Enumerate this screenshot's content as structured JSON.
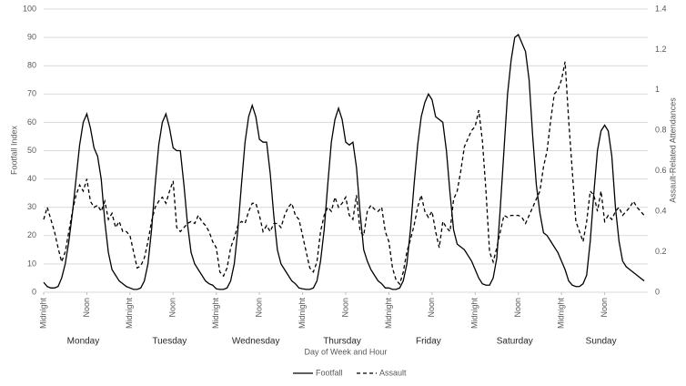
{
  "chart_data": {
    "type": "line",
    "xlabel": "Day of Week and Hour",
    "ylabel": "Footfall Index",
    "y2label": "Assault-Related Attendances",
    "day_labels": [
      "Monday",
      "Tuesday",
      "Wednesday",
      "Thursday",
      "Friday",
      "Saturday",
      "Sunday"
    ],
    "x": [
      0,
      1,
      2,
      3,
      4,
      5,
      6,
      7,
      8,
      9,
      10,
      11,
      12,
      13,
      14,
      15,
      16,
      17,
      18,
      19,
      20,
      21,
      22,
      23,
      24,
      25,
      26,
      27,
      28,
      29,
      30,
      31,
      32,
      33,
      34,
      35,
      36,
      37,
      38,
      39,
      40,
      41,
      42,
      43,
      44,
      45,
      46,
      47,
      48,
      49,
      50,
      51,
      52,
      53,
      54,
      55,
      56,
      57,
      58,
      59,
      60,
      61,
      62,
      63,
      64,
      65,
      66,
      67,
      68,
      69,
      70,
      71,
      72,
      73,
      74,
      75,
      76,
      77,
      78,
      79,
      80,
      81,
      82,
      83,
      84,
      85,
      86,
      87,
      88,
      89,
      90,
      91,
      92,
      93,
      94,
      95,
      96,
      97,
      98,
      99,
      100,
      101,
      102,
      103,
      104,
      105,
      106,
      107,
      108,
      109,
      110,
      111,
      112,
      113,
      114,
      115,
      116,
      117,
      118,
      119,
      120,
      121,
      122,
      123,
      124,
      125,
      126,
      127,
      128,
      129,
      130,
      131,
      132,
      133,
      134,
      135,
      136,
      137,
      138,
      139,
      140,
      141,
      142,
      143,
      144,
      145,
      146,
      147,
      148,
      149,
      150,
      151,
      152,
      153,
      154,
      155,
      156,
      157,
      158,
      159,
      160,
      161,
      162,
      163,
      164,
      165,
      166,
      167
    ],
    "xlim": [
      0,
      168
    ],
    "xticks": [
      {
        "value": 0,
        "label": "Midnight"
      },
      {
        "value": 12,
        "label": "Noon"
      },
      {
        "value": 24,
        "label": "Midnight"
      },
      {
        "value": 36,
        "label": "Noon"
      },
      {
        "value": 48,
        "label": "Midnight"
      },
      {
        "value": 60,
        "label": "Noon"
      },
      {
        "value": 72,
        "label": "Midnight"
      },
      {
        "value": 84,
        "label": "Noon"
      },
      {
        "value": 96,
        "label": "Midnight"
      },
      {
        "value": 108,
        "label": "Noon"
      },
      {
        "value": 120,
        "label": "Midnight"
      },
      {
        "value": 132,
        "label": "Noon"
      },
      {
        "value": 144,
        "label": "Midnight"
      },
      {
        "value": 156,
        "label": "Noon"
      }
    ],
    "ylim": [
      0,
      100
    ],
    "yticks": [
      0,
      10,
      20,
      30,
      40,
      50,
      60,
      70,
      80,
      90,
      100
    ],
    "y2lim": [
      0,
      1.4
    ],
    "y2ticks": [
      0,
      0.2,
      0.4,
      0.6,
      0.8,
      1,
      1.2,
      1.4
    ],
    "grid": true,
    "legend": "bottom",
    "series": [
      {
        "name": "Footfall",
        "color": "#000000",
        "line_style": "solid",
        "axis": "y",
        "values": [
          3.5,
          2,
          1.5,
          1.5,
          2,
          5,
          10,
          18,
          28,
          40,
          52,
          60,
          63,
          58,
          51,
          48,
          40,
          25,
          14,
          8,
          6,
          4,
          3,
          2,
          1.5,
          1,
          1,
          1.5,
          4,
          10,
          22,
          38,
          52,
          60,
          63,
          58,
          51,
          50,
          50,
          38,
          24,
          14,
          10,
          8,
          6,
          4,
          3,
          2.5,
          1.2,
          1,
          1,
          1.5,
          4,
          10,
          22,
          38,
          53,
          62,
          66,
          62,
          54,
          53,
          53,
          42,
          27,
          15,
          10,
          8,
          6,
          4,
          3,
          1.5,
          1.2,
          1,
          1,
          1.5,
          4,
          11,
          22,
          38,
          53,
          61,
          65,
          61,
          53,
          52,
          53,
          44,
          28,
          15,
          11,
          8,
          6,
          4,
          3,
          1.5,
          1.5,
          1,
          1,
          1.5,
          4,
          10,
          22,
          38,
          52,
          62,
          67,
          70,
          68,
          62,
          61,
          60,
          50,
          35,
          22,
          17,
          16,
          15,
          13,
          11,
          8,
          5,
          3,
          2.5,
          2.5,
          5,
          12,
          30,
          50,
          70,
          82,
          90,
          91,
          88,
          85,
          75,
          55,
          38,
          28,
          21,
          20,
          18,
          16,
          14,
          11,
          8,
          4,
          2.5,
          2,
          2,
          3,
          6,
          18,
          35,
          50,
          57,
          59,
          57,
          48,
          30,
          18,
          11,
          9,
          8,
          7,
          6,
          5,
          4
        ]
      },
      {
        "name": "Assault",
        "color": "#000000",
        "line_style": "dashed",
        "axis": "y2",
        "values": [
          0.36,
          0.42,
          0.36,
          0.3,
          0.22,
          0.15,
          0.2,
          0.3,
          0.4,
          0.48,
          0.53,
          0.5,
          0.56,
          0.45,
          0.42,
          0.43,
          0.4,
          0.45,
          0.36,
          0.39,
          0.32,
          0.35,
          0.3,
          0.3,
          0.28,
          0.2,
          0.12,
          0.13,
          0.17,
          0.25,
          0.35,
          0.42,
          0.45,
          0.47,
          0.44,
          0.5,
          0.55,
          0.32,
          0.3,
          0.32,
          0.34,
          0.35,
          0.34,
          0.38,
          0.35,
          0.33,
          0.3,
          0.25,
          0.22,
          0.1,
          0.08,
          0.12,
          0.22,
          0.27,
          0.33,
          0.35,
          0.34,
          0.4,
          0.44,
          0.44,
          0.38,
          0.3,
          0.33,
          0.3,
          0.34,
          0.34,
          0.32,
          0.38,
          0.42,
          0.44,
          0.38,
          0.36,
          0.28,
          0.2,
          0.12,
          0.1,
          0.15,
          0.3,
          0.38,
          0.42,
          0.4,
          0.47,
          0.42,
          0.44,
          0.47,
          0.38,
          0.36,
          0.48,
          0.3,
          0.28,
          0.4,
          0.43,
          0.41,
          0.4,
          0.42,
          0.3,
          0.25,
          0.12,
          0.06,
          0.04,
          0.1,
          0.2,
          0.26,
          0.33,
          0.42,
          0.48,
          0.4,
          0.37,
          0.4,
          0.3,
          0.22,
          0.35,
          0.32,
          0.3,
          0.46,
          0.5,
          0.6,
          0.72,
          0.76,
          0.8,
          0.82,
          0.9,
          0.75,
          0.5,
          0.2,
          0.15,
          0.22,
          0.3,
          0.38,
          0.37,
          0.38,
          0.38,
          0.38,
          0.37,
          0.34,
          0.38,
          0.42,
          0.46,
          0.5,
          0.62,
          0.7,
          0.85,
          0.98,
          1.0,
          1.05,
          1.14,
          0.85,
          0.6,
          0.35,
          0.3,
          0.25,
          0.35,
          0.5,
          0.48,
          0.4,
          0.5,
          0.35,
          0.38,
          0.36,
          0.4,
          0.42,
          0.38,
          0.4,
          0.42,
          0.45,
          0.42,
          0.4,
          0.38
        ]
      }
    ]
  }
}
